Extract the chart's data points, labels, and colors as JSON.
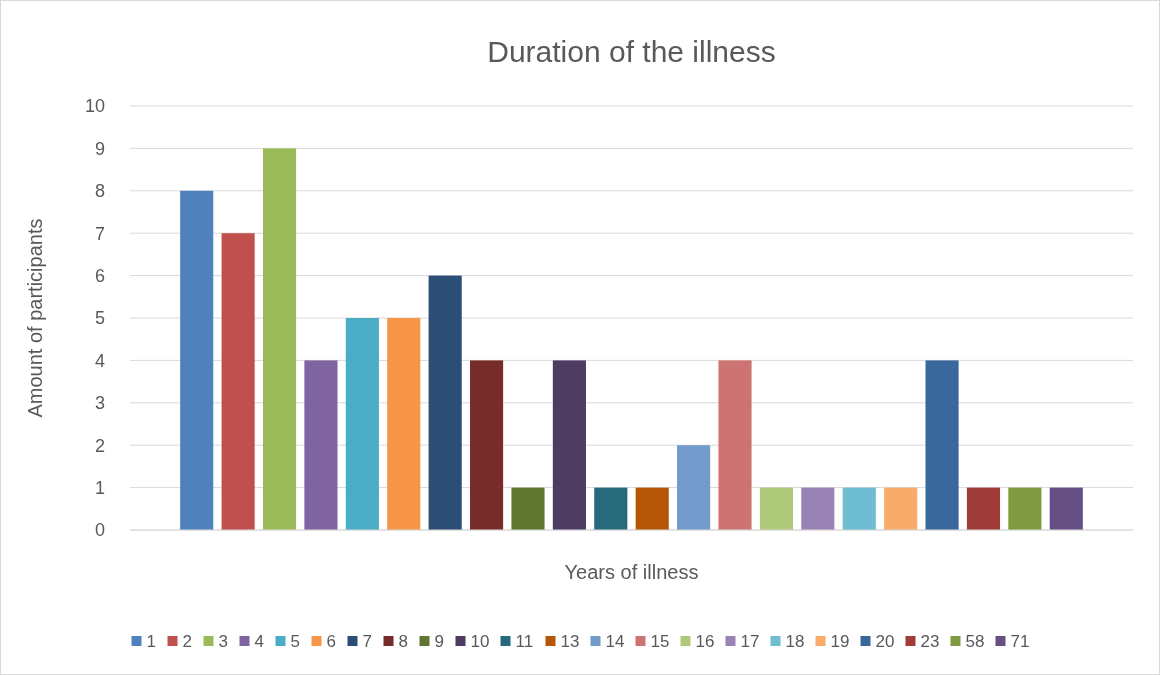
{
  "chart_data": {
    "type": "bar",
    "title": "Duration of the illness",
    "xlabel": "Years of illness",
    "ylabel": "Amount of participants",
    "categories": [
      null
    ],
    "series": [
      {
        "name": "1",
        "color": "#4f81bd",
        "values": [
          8
        ]
      },
      {
        "name": "2",
        "color": "#c0504d",
        "values": [
          7
        ]
      },
      {
        "name": "3",
        "color": "#9bbb59",
        "values": [
          9
        ]
      },
      {
        "name": "4",
        "color": "#8064a2",
        "values": [
          4
        ]
      },
      {
        "name": "5",
        "color": "#4bacc6",
        "values": [
          5
        ]
      },
      {
        "name": "6",
        "color": "#f79646",
        "values": [
          5
        ]
      },
      {
        "name": "7",
        "color": "#2c4d75",
        "values": [
          6
        ]
      },
      {
        "name": "8",
        "color": "#772c2a",
        "values": [
          4
        ]
      },
      {
        "name": "9",
        "color": "#5f7530",
        "values": [
          1
        ]
      },
      {
        "name": "10",
        "color": "#4d3b62",
        "values": [
          4
        ]
      },
      {
        "name": "11",
        "color": "#276a7c",
        "values": [
          1
        ]
      },
      {
        "name": "13",
        "color": "#b65708",
        "values": [
          1
        ]
      },
      {
        "name": "14",
        "color": "#729aca",
        "values": [
          2
        ]
      },
      {
        "name": "15",
        "color": "#cd7371",
        "values": [
          4
        ]
      },
      {
        "name": "16",
        "color": "#afc97a",
        "values": [
          1
        ]
      },
      {
        "name": "17",
        "color": "#9983b5",
        "values": [
          1
        ]
      },
      {
        "name": "18",
        "color": "#6fbdd1",
        "values": [
          1
        ]
      },
      {
        "name": "19",
        "color": "#f9ab6b",
        "values": [
          1
        ]
      },
      {
        "name": "20",
        "color": "#3a679c",
        "values": [
          4
        ]
      },
      {
        "name": "23",
        "color": "#9f3b38",
        "values": [
          1
        ]
      },
      {
        "name": "58",
        "color": "#7f9a41",
        "values": [
          1
        ]
      },
      {
        "name": "71",
        "color": "#664f83",
        "values": [
          1
        ]
      }
    ],
    "ylim": [
      0,
      10
    ],
    "yticks": [
      0,
      1,
      2,
      3,
      4,
      5,
      6,
      7,
      8,
      9,
      10
    ],
    "grid": "y",
    "legend": "bottom"
  }
}
